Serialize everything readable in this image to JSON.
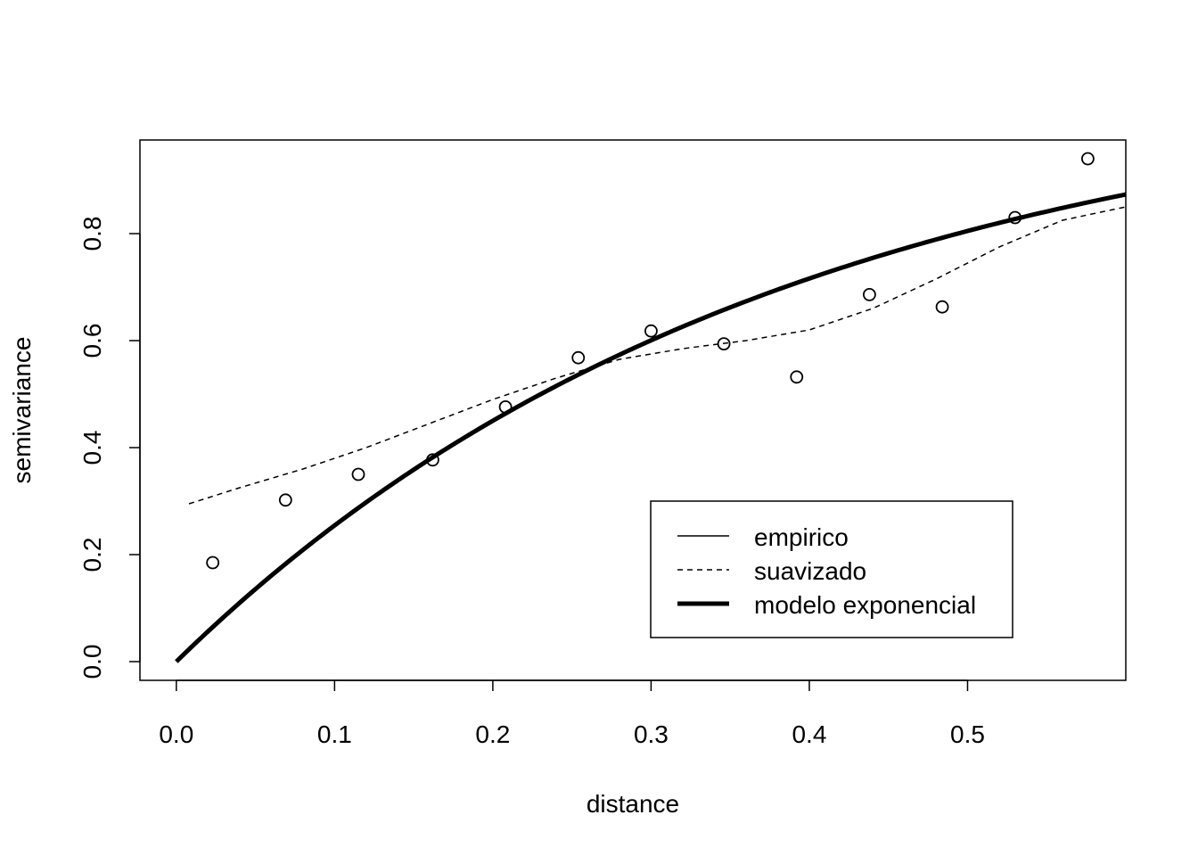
{
  "chart_data": {
    "type": "scatter",
    "title": "",
    "xlabel": "distance",
    "ylabel": "semivariance",
    "xlim": [
      -0.023,
      0.6
    ],
    "ylim": [
      -0.035,
      0.975
    ],
    "x_ticks": [
      0.0,
      0.1,
      0.2,
      0.3,
      0.4,
      0.5
    ],
    "x_tick_labels": [
      "0.0",
      "0.1",
      "0.2",
      "0.3",
      "0.4",
      "0.5"
    ],
    "y_ticks": [
      0.0,
      0.2,
      0.4,
      0.6,
      0.8
    ],
    "y_tick_labels": [
      "0.0",
      "0.2",
      "0.4",
      "0.6",
      "0.8"
    ],
    "grid": false,
    "legend_position": "bottom-right",
    "series": [
      {
        "name": "empirico",
        "style": "points",
        "x": [
          0.023,
          0.069,
          0.115,
          0.162,
          0.208,
          0.254,
          0.3,
          0.346,
          0.392,
          0.438,
          0.484,
          0.53,
          0.576
        ],
        "y": [
          0.185,
          0.302,
          0.35,
          0.377,
          0.476,
          0.568,
          0.618,
          0.594,
          0.532,
          0.686,
          0.663,
          0.83,
          0.94
        ]
      },
      {
        "name": "suavizado",
        "style": "dashed",
        "x": [
          0.008,
          0.04,
          0.08,
          0.12,
          0.16,
          0.2,
          0.24,
          0.28,
          0.32,
          0.36,
          0.4,
          0.44,
          0.48,
          0.52,
          0.56,
          0.6
        ],
        "y": [
          0.295,
          0.325,
          0.36,
          0.4,
          0.445,
          0.49,
          0.53,
          0.565,
          0.585,
          0.6,
          0.62,
          0.66,
          0.715,
          0.775,
          0.825,
          0.85
        ]
      },
      {
        "name": "modelo exponencial",
        "style": "thick",
        "model": {
          "sill": 1.1,
          "range": 0.38,
          "nugget": 0
        },
        "x_range": [
          0,
          0.6
        ]
      }
    ]
  }
}
